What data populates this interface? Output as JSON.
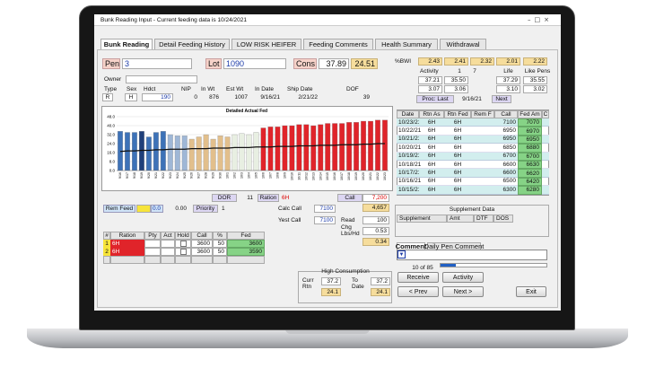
{
  "window": {
    "title": "Bunk Reading Input - Current feeding data is 10/24/2021"
  },
  "tabs": [
    "Bunk Reading",
    "Detail Feeding History",
    "LOW RISK HEIFER",
    "Feeding Comments",
    "Health Summary",
    "Withdrawal"
  ],
  "pen": {
    "label": "Pen",
    "value": "3"
  },
  "lot": {
    "label": "Lot",
    "value": "1090"
  },
  "cons": {
    "label": "Cons",
    "values": [
      "37.89",
      "24.51"
    ]
  },
  "owner": {
    "label": "Owner"
  },
  "info": {
    "labels": [
      "Type",
      "Sex",
      "Hdct",
      "NIP",
      "In Wt",
      "Est Wt",
      "In Date",
      "Ship Date",
      "DOF"
    ],
    "values": [
      "R",
      "H",
      "190",
      "0",
      "876",
      "1007",
      "9/16/21",
      "2/21/22",
      "39"
    ]
  },
  "bwi": {
    "label": "%BWI",
    "values": [
      "2.43",
      "2.41",
      "2.32",
      "2.01",
      "2.22"
    ],
    "header": [
      "Activity",
      "1",
      "7",
      "Life",
      "Like Pens"
    ],
    "rows": [
      [
        "37.21",
        "35.50",
        "37.29",
        "35.55"
      ],
      [
        "3.07",
        "3.06",
        "3.10",
        "3.02"
      ]
    ]
  },
  "proc": {
    "label": "Proc: Last",
    "date": "9/16/21",
    "next": "Next"
  },
  "chart_data": {
    "type": "bar",
    "title": "Detailed Actual Fed",
    "categories": [
      "9/16",
      "9/17",
      "9/18",
      "9/19",
      "9/20",
      "9/21",
      "9/22",
      "9/23",
      "9/24",
      "9/25",
      "9/26",
      "9/27",
      "9/28",
      "9/29",
      "9/30",
      "10/1",
      "10/2",
      "10/3",
      "10/4",
      "10/5",
      "10/6",
      "10/7",
      "10/8",
      "10/9",
      "10/10",
      "10/11",
      "10/12",
      "10/13",
      "10/14",
      "10/15",
      "10/16",
      "10/17",
      "10/18",
      "10/19",
      "10/20",
      "10/21",
      "10/22",
      "10/23"
    ],
    "series": [
      {
        "type": "bar",
        "values": [
          35,
          34,
          34,
          35,
          30,
          34,
          35,
          32,
          31,
          31,
          28,
          30,
          32,
          28,
          31,
          30,
          32,
          33,
          32,
          34,
          38,
          39,
          39,
          40,
          40,
          41,
          41,
          40,
          41,
          42,
          42,
          42,
          43,
          43,
          44,
          44,
          45,
          45
        ],
        "colors": [
          "#3d72b8",
          "#3d72b8",
          "#3d72b8",
          "#1f3f7a",
          "#3d72b8",
          "#3d72b8",
          "#3d72b8",
          "#9fb7d6",
          "#9fb7d6",
          "#9fb7d6",
          "#e2bf8c",
          "#e2bf8c",
          "#e2bf8c",
          "#e2bf8c",
          "#e2bf8c",
          "#e2bf8c",
          "#e8efe2",
          "#e8efe2",
          "#e8efe2",
          "#e8efe2",
          "#e0242a",
          "#e0242a",
          "#e0242a",
          "#e0242a",
          "#e0242a",
          "#e0242a",
          "#e0242a",
          "#e0242a",
          "#e0242a",
          "#e0242a",
          "#e0242a",
          "#e0242a",
          "#e0242a",
          "#e0242a",
          "#e0242a",
          "#e0242a",
          "#e0242a",
          "#e0242a"
        ]
      },
      {
        "type": "line",
        "color": "#111111",
        "values": [
          17,
          17.5,
          17.5,
          18,
          18,
          18.5,
          18.5,
          19,
          19,
          19,
          19.5,
          19.5,
          19.5,
          20,
          20,
          20,
          20.5,
          20.5,
          20.5,
          21,
          21,
          21,
          21.5,
          21.5,
          21.5,
          22,
          22,
          22,
          22.5,
          22.5,
          22.5,
          23,
          23,
          23,
          23.5,
          23.5,
          24,
          24
        ]
      }
    ],
    "ylim": [
      0,
      48
    ],
    "yticks": [
      {
        "value": 0,
        "label": "0.0"
      },
      {
        "value": 8,
        "label": "8.0"
      },
      {
        "value": 16,
        "label": "16.0"
      },
      {
        "value": 24,
        "label": "24.0"
      },
      {
        "value": 32,
        "label": "32.0"
      },
      {
        "value": 40,
        "label": "40.0"
      },
      {
        "value": 48,
        "label": "48.0"
      }
    ],
    "grid": true
  },
  "history": {
    "columns": [
      "Date",
      "Rtn As",
      "Rtn Fed",
      "Rem F",
      "Call",
      "Fed Am",
      "C"
    ],
    "rows": [
      {
        "date": "10/23/21",
        "rtn_as": "6H",
        "rtn_fed": "6H",
        "call": "7100",
        "fed": "7070"
      },
      {
        "date": "10/22/21",
        "rtn_as": "6H",
        "rtn_fed": "6H",
        "call": "6950",
        "fed": "6970"
      },
      {
        "date": "10/21/21",
        "rtn_as": "6H",
        "rtn_fed": "6H",
        "call": "6950",
        "fed": "6950"
      },
      {
        "date": "10/20/21",
        "rtn_as": "6H",
        "rtn_fed": "6H",
        "call": "6850",
        "fed": "6880"
      },
      {
        "date": "10/19/21",
        "rtn_as": "6H",
        "rtn_fed": "6H",
        "call": "6700",
        "fed": "6700"
      },
      {
        "date": "10/18/21",
        "rtn_as": "6H",
        "rtn_fed": "6H",
        "call": "6600",
        "fed": "6630"
      },
      {
        "date": "10/17/21",
        "rtn_as": "6H",
        "rtn_fed": "6H",
        "call": "6600",
        "fed": "6620"
      },
      {
        "date": "10/16/21",
        "rtn_as": "6H",
        "rtn_fed": "6H",
        "call": "6500",
        "fed": "6420"
      },
      {
        "date": "10/15/21",
        "rtn_as": "6H",
        "rtn_fed": "6H",
        "call": "6300",
        "fed": "6280"
      }
    ]
  },
  "dor": {
    "label": "DOR",
    "value": "11"
  },
  "ration": {
    "label": "Ration",
    "value": "6H"
  },
  "call": {
    "label": "Call",
    "value": "7,200",
    "total": "4,657"
  },
  "rem_feed": {
    "label": "Rem Feed",
    "value": "0.0",
    "amount": "0.00"
  },
  "priority": {
    "label": "Priority",
    "value": "1"
  },
  "calc_call": {
    "label": "Calc Call",
    "value": "7100"
  },
  "yest_call": {
    "label": "Yest Call",
    "value": "7100"
  },
  "read": {
    "label": "Read",
    "value": "100"
  },
  "chg": {
    "label": [
      "Chg",
      "Lbs/Hd"
    ],
    "value": "0.53",
    "total": "0.34"
  },
  "ration_table": {
    "columns": [
      "#",
      "Ration",
      "Pty",
      "Act",
      "Hold",
      "Call",
      "%",
      "Fed"
    ],
    "rows": [
      {
        "n": "1",
        "ration": "6H",
        "call": "3600",
        "pct": "50",
        "fed": "3600"
      },
      {
        "n": "2",
        "ration": "6H",
        "call": "3600",
        "pct": "50",
        "fed": "3590"
      }
    ]
  },
  "supplement": {
    "title": "Supplement Data",
    "columns": [
      "Supplement",
      "Amt",
      "DTF",
      "DOS"
    ]
  },
  "comment": {
    "tabs": [
      "Comment",
      "Daily Pen Comment"
    ]
  },
  "progress": {
    "label": "10 of 85"
  },
  "high": {
    "title": "High Consumption",
    "curr": [
      "Curr",
      "Rtn"
    ],
    "curr_values": [
      "37.2",
      "24.1"
    ],
    "to": [
      "To",
      "Date"
    ],
    "to_values": [
      "37.2",
      "24.1"
    ]
  },
  "buttons": [
    "Receive",
    "Activity",
    "< Prev",
    "Next >",
    "Exit"
  ]
}
